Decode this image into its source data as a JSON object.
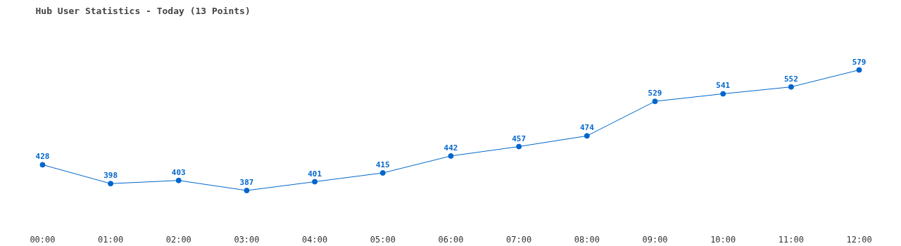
{
  "chart_data": {
    "type": "line",
    "title": "Hub User Statistics - Today (13 Points)",
    "categories": [
      "00:00",
      "01:00",
      "02:00",
      "03:00",
      "04:00",
      "05:00",
      "06:00",
      "07:00",
      "08:00",
      "09:00",
      "10:00",
      "11:00",
      "12:00"
    ],
    "series": [
      {
        "color": "#0066cc",
        "values": [
          428,
          398,
          403,
          387,
          401,
          415,
          442,
          457,
          474,
          529,
          541,
          552,
          579
        ]
      }
    ],
    "data_labels": true,
    "marker": "circle",
    "grid": false
  }
}
